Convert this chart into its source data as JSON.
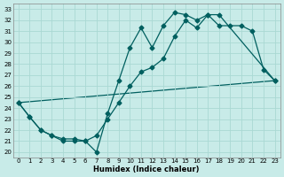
{
  "xlabel": "Humidex (Indice chaleur)",
  "xlim": [
    -0.5,
    23.5
  ],
  "ylim": [
    19.5,
    33.5
  ],
  "xticks": [
    0,
    1,
    2,
    3,
    4,
    5,
    6,
    7,
    8,
    9,
    10,
    11,
    12,
    13,
    14,
    15,
    16,
    17,
    18,
    19,
    20,
    21,
    22,
    23
  ],
  "yticks": [
    20,
    21,
    22,
    23,
    24,
    25,
    26,
    27,
    28,
    29,
    30,
    31,
    32,
    33
  ],
  "background_color": "#c8ebe8",
  "grid_color": "#aad8d3",
  "line_color": "#005f5f",
  "line1_x": [
    0,
    1,
    2,
    3,
    4,
    5,
    6,
    7,
    8,
    9,
    10,
    11,
    12,
    13,
    14,
    15,
    16,
    17,
    18,
    23
  ],
  "line1_y": [
    24.5,
    23.2,
    22.0,
    21.5,
    21.2,
    21.2,
    21.0,
    20.0,
    23.5,
    26.5,
    29.5,
    31.3,
    29.5,
    31.5,
    32.7,
    32.5,
    32.0,
    32.5,
    32.5,
    26.5
  ],
  "line2_x": [
    0,
    1,
    2,
    3,
    4,
    5,
    6,
    7,
    8,
    9,
    10,
    11,
    12,
    13,
    14,
    15,
    16,
    17,
    18,
    19,
    20,
    21,
    22,
    23
  ],
  "line2_y": [
    24.5,
    23.2,
    22.0,
    21.5,
    21.0,
    21.0,
    21.0,
    21.5,
    23.0,
    24.5,
    26.0,
    27.3,
    27.7,
    28.5,
    30.5,
    32.0,
    31.3,
    32.5,
    31.5,
    31.5,
    31.5,
    31.0,
    27.5,
    26.5
  ],
  "line3_x": [
    0,
    23
  ],
  "line3_y": [
    24.5,
    26.5
  ]
}
